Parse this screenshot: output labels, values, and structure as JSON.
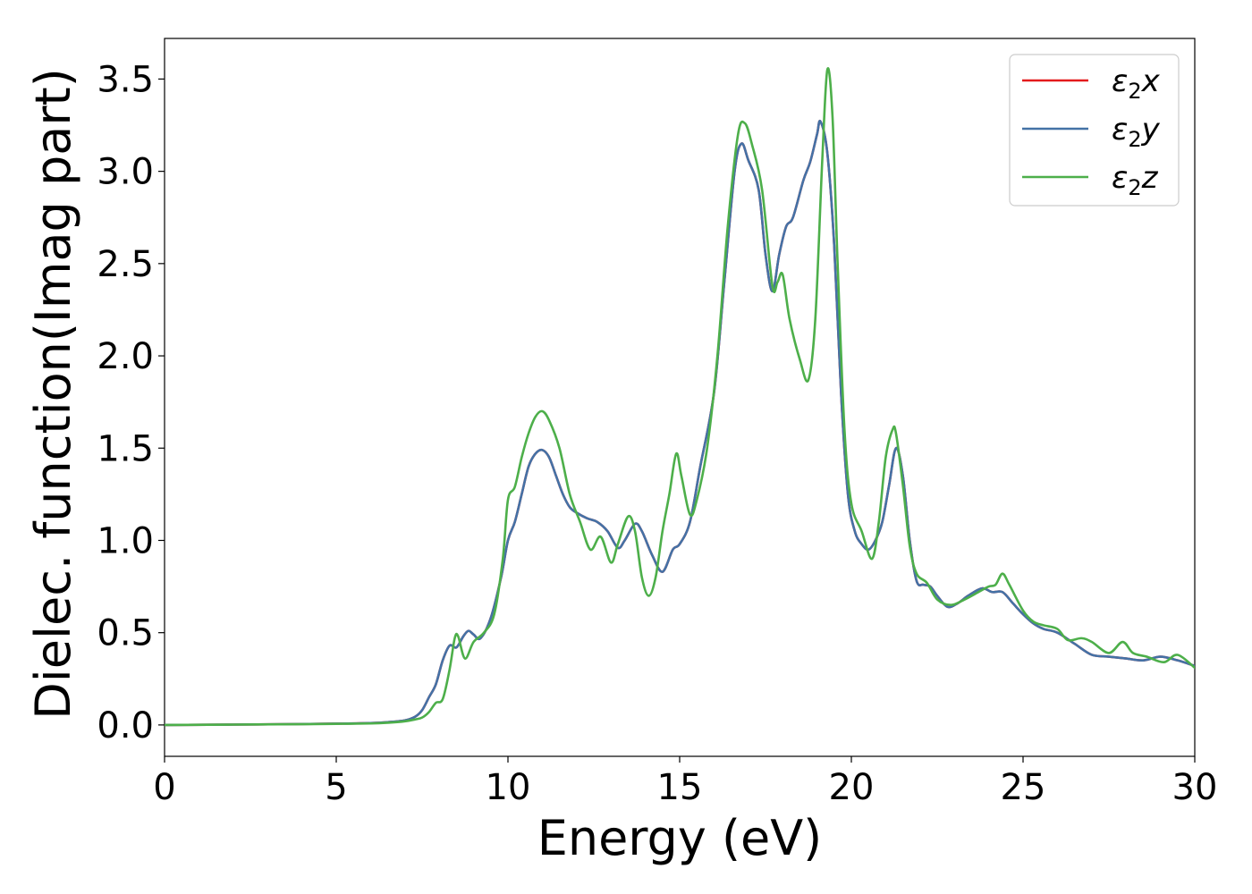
{
  "chart_data": {
    "type": "line",
    "xlabel": "Energy (eV)",
    "ylabel": "Dielec. function(Imag part)",
    "xlim": [
      0,
      30
    ],
    "ylim": [
      -0.17,
      3.72
    ],
    "xticks": [
      0,
      5,
      10,
      15,
      20,
      25,
      30
    ],
    "xtick_labels": [
      "0",
      "5",
      "10",
      "15",
      "20",
      "25",
      "30"
    ],
    "yticks": [
      0.0,
      0.5,
      1.0,
      1.5,
      2.0,
      2.5,
      3.0,
      3.5
    ],
    "ytick_labels": [
      "0.0",
      "0.5",
      "1.0",
      "1.5",
      "2.0",
      "2.5",
      "3.0",
      "3.5"
    ],
    "grid": false,
    "legend_position": "top-right",
    "series": [
      {
        "name": "ε2x",
        "legend_symbol": "ε",
        "legend_sub": "2",
        "legend_var": "x",
        "color": "#e41a1c",
        "x": [
          0,
          2,
          4,
          5,
          6,
          6.5,
          7,
          7.3,
          7.5,
          7.7,
          7.9,
          8.1,
          8.3,
          8.5,
          8.7,
          8.85,
          9.0,
          9.2,
          9.5,
          9.8,
          10.0,
          10.2,
          10.4,
          10.6,
          10.8,
          11.0,
          11.2,
          11.4,
          11.6,
          11.8,
          12.0,
          12.3,
          12.6,
          12.9,
          13.2,
          13.4,
          13.7,
          13.9,
          14.2,
          14.5,
          14.8,
          15.0,
          15.3,
          15.6,
          16.0,
          16.3,
          16.6,
          16.8,
          17.0,
          17.3,
          17.5,
          17.7,
          17.9,
          18.1,
          18.3,
          18.6,
          18.8,
          19.0,
          19.1,
          19.3,
          19.5,
          19.7,
          19.9,
          20.1,
          20.3,
          20.5,
          20.7,
          20.9,
          21.1,
          21.3,
          21.5,
          21.7,
          21.9,
          22.1,
          22.3,
          22.5,
          22.8,
          23.1,
          23.4,
          23.8,
          24.1,
          24.4,
          24.7,
          25.0,
          25.3,
          25.6,
          26.0,
          26.5,
          27.0,
          27.5,
          28.0,
          28.5,
          29.0,
          29.5,
          30.0
        ],
        "y": [
          0.0,
          0.002,
          0.005,
          0.007,
          0.01,
          0.015,
          0.025,
          0.045,
          0.08,
          0.15,
          0.22,
          0.35,
          0.43,
          0.42,
          0.48,
          0.51,
          0.49,
          0.47,
          0.58,
          0.8,
          1.0,
          1.1,
          1.25,
          1.4,
          1.47,
          1.49,
          1.45,
          1.35,
          1.25,
          1.18,
          1.15,
          1.12,
          1.1,
          1.05,
          0.96,
          1.0,
          1.09,
          1.05,
          0.92,
          0.83,
          0.95,
          0.98,
          1.1,
          1.4,
          1.8,
          2.4,
          3.0,
          3.15,
          3.06,
          2.9,
          2.55,
          2.35,
          2.55,
          2.7,
          2.75,
          2.95,
          3.05,
          3.2,
          3.27,
          3.1,
          2.6,
          1.8,
          1.25,
          1.05,
          0.98,
          0.95,
          1.0,
          1.1,
          1.3,
          1.5,
          1.35,
          1.0,
          0.78,
          0.76,
          0.75,
          0.7,
          0.64,
          0.66,
          0.7,
          0.74,
          0.72,
          0.72,
          0.66,
          0.6,
          0.55,
          0.52,
          0.5,
          0.44,
          0.38,
          0.37,
          0.36,
          0.35,
          0.37,
          0.35,
          0.32
        ]
      },
      {
        "name": "ε2y",
        "legend_symbol": "ε",
        "legend_sub": "2",
        "legend_var": "y",
        "color": "#4472a6",
        "x": [
          0,
          2,
          4,
          5,
          6,
          6.5,
          7,
          7.3,
          7.5,
          7.7,
          7.9,
          8.1,
          8.3,
          8.5,
          8.7,
          8.85,
          9.0,
          9.2,
          9.5,
          9.8,
          10.0,
          10.2,
          10.4,
          10.6,
          10.8,
          11.0,
          11.2,
          11.4,
          11.6,
          11.8,
          12.0,
          12.3,
          12.6,
          12.9,
          13.2,
          13.4,
          13.7,
          13.9,
          14.2,
          14.5,
          14.8,
          15.0,
          15.3,
          15.6,
          16.0,
          16.3,
          16.6,
          16.8,
          17.0,
          17.3,
          17.5,
          17.7,
          17.9,
          18.1,
          18.3,
          18.6,
          18.8,
          19.0,
          19.1,
          19.3,
          19.5,
          19.7,
          19.9,
          20.1,
          20.3,
          20.5,
          20.7,
          20.9,
          21.1,
          21.3,
          21.5,
          21.7,
          21.9,
          22.1,
          22.3,
          22.5,
          22.8,
          23.1,
          23.4,
          23.8,
          24.1,
          24.4,
          24.7,
          25.0,
          25.3,
          25.6,
          26.0,
          26.5,
          27.0,
          27.5,
          28.0,
          28.5,
          29.0,
          29.5,
          30.0
        ],
        "y": [
          0.0,
          0.002,
          0.005,
          0.007,
          0.01,
          0.015,
          0.025,
          0.045,
          0.08,
          0.15,
          0.22,
          0.35,
          0.43,
          0.42,
          0.48,
          0.51,
          0.49,
          0.47,
          0.58,
          0.8,
          1.0,
          1.1,
          1.25,
          1.4,
          1.47,
          1.49,
          1.45,
          1.35,
          1.25,
          1.18,
          1.15,
          1.12,
          1.1,
          1.05,
          0.96,
          1.0,
          1.09,
          1.05,
          0.92,
          0.83,
          0.95,
          0.98,
          1.1,
          1.4,
          1.8,
          2.4,
          3.0,
          3.15,
          3.06,
          2.9,
          2.55,
          2.35,
          2.55,
          2.7,
          2.75,
          2.95,
          3.05,
          3.2,
          3.27,
          3.1,
          2.6,
          1.8,
          1.25,
          1.05,
          0.98,
          0.95,
          1.0,
          1.1,
          1.3,
          1.5,
          1.35,
          1.0,
          0.78,
          0.76,
          0.75,
          0.7,
          0.64,
          0.66,
          0.7,
          0.74,
          0.72,
          0.72,
          0.66,
          0.6,
          0.55,
          0.52,
          0.5,
          0.44,
          0.38,
          0.37,
          0.36,
          0.35,
          0.37,
          0.35,
          0.32
        ]
      },
      {
        "name": "ε2z",
        "legend_symbol": "ε",
        "legend_sub": "2",
        "legend_var": "z",
        "color": "#4daf4a",
        "x": [
          0,
          2,
          4,
          5,
          6,
          6.5,
          7,
          7.3,
          7.5,
          7.7,
          7.9,
          8.1,
          8.3,
          8.45,
          8.55,
          8.75,
          9.0,
          9.3,
          9.6,
          9.85,
          10.0,
          10.2,
          10.4,
          10.6,
          10.8,
          11.0,
          11.2,
          11.5,
          11.8,
          12.1,
          12.4,
          12.7,
          13.0,
          13.2,
          13.5,
          13.7,
          13.9,
          14.1,
          14.3,
          14.5,
          14.7,
          14.9,
          15.05,
          15.3,
          15.5,
          15.8,
          16.1,
          16.4,
          16.7,
          16.9,
          17.1,
          17.4,
          17.7,
          17.85,
          18.0,
          18.2,
          18.5,
          18.75,
          18.95,
          19.15,
          19.3,
          19.45,
          19.6,
          19.8,
          20.0,
          20.3,
          20.6,
          20.8,
          21.0,
          21.2,
          21.3,
          21.5,
          21.7,
          21.9,
          22.2,
          22.5,
          22.9,
          23.3,
          23.7,
          24.0,
          24.2,
          24.4,
          24.6,
          25.0,
          25.3,
          25.6,
          26.0,
          26.3,
          26.7,
          27.0,
          27.5,
          27.9,
          28.2,
          28.6,
          29.1,
          29.5,
          30.0
        ],
        "y": [
          0.0,
          0.002,
          0.004,
          0.006,
          0.008,
          0.012,
          0.02,
          0.03,
          0.04,
          0.07,
          0.12,
          0.14,
          0.3,
          0.47,
          0.48,
          0.36,
          0.45,
          0.5,
          0.6,
          0.9,
          1.22,
          1.29,
          1.45,
          1.58,
          1.67,
          1.7,
          1.65,
          1.5,
          1.25,
          1.1,
          0.95,
          1.02,
          0.88,
          0.98,
          1.13,
          1.05,
          0.8,
          0.7,
          0.8,
          1.05,
          1.25,
          1.47,
          1.35,
          1.14,
          1.22,
          1.5,
          2.0,
          2.7,
          3.2,
          3.26,
          3.15,
          2.9,
          2.38,
          2.4,
          2.44,
          2.2,
          1.98,
          1.87,
          2.2,
          3.05,
          3.55,
          3.3,
          2.5,
          1.6,
          1.2,
          1.05,
          0.9,
          1.1,
          1.45,
          1.6,
          1.58,
          1.3,
          0.97,
          0.82,
          0.77,
          0.68,
          0.65,
          0.68,
          0.72,
          0.75,
          0.76,
          0.82,
          0.76,
          0.62,
          0.56,
          0.54,
          0.52,
          0.46,
          0.47,
          0.45,
          0.39,
          0.45,
          0.39,
          0.37,
          0.34,
          0.38,
          0.31
        ]
      }
    ]
  }
}
